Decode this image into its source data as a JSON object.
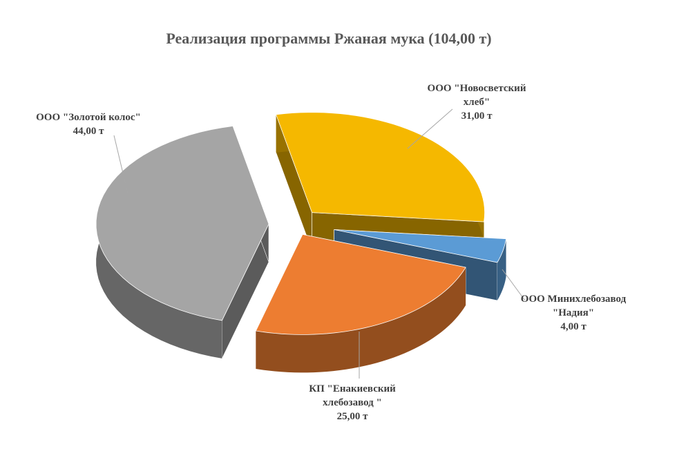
{
  "chart_data": {
    "type": "pie",
    "title": "Реализация программы Ржаная мука (104,00 т)",
    "slices": [
      {
        "label_lines": [
          "ООО \"Новосветский",
          "хлеб\"",
          "31,00 т"
        ],
        "name": "ООО \"Новосветский хлеб\"",
        "value": 31.0,
        "color": "#F5B800"
      },
      {
        "label_lines": [
          "ООО Минихлебозавод",
          "\"Надия\"",
          "4,00 т"
        ],
        "name": "ООО Минихлебозавод \"Надия\"",
        "value": 4.0,
        "color": "#5B9BD5"
      },
      {
        "label_lines": [
          "КП \"Енакиевский",
          "хлебозавод \"",
          "25,00 т"
        ],
        "name": "КП \"Енакиевский хлебозавод \"",
        "value": 25.0,
        "color": "#ED7D31"
      },
      {
        "label_lines": [
          "ООО \"Золотой колос\"",
          "44,00 т"
        ],
        "name": "ООО \"Золотой колос\"",
        "value": 44.0,
        "color": "#A5A5A5"
      }
    ],
    "unit": "т",
    "total": 104.0,
    "style": "3d-exploded-pie"
  }
}
